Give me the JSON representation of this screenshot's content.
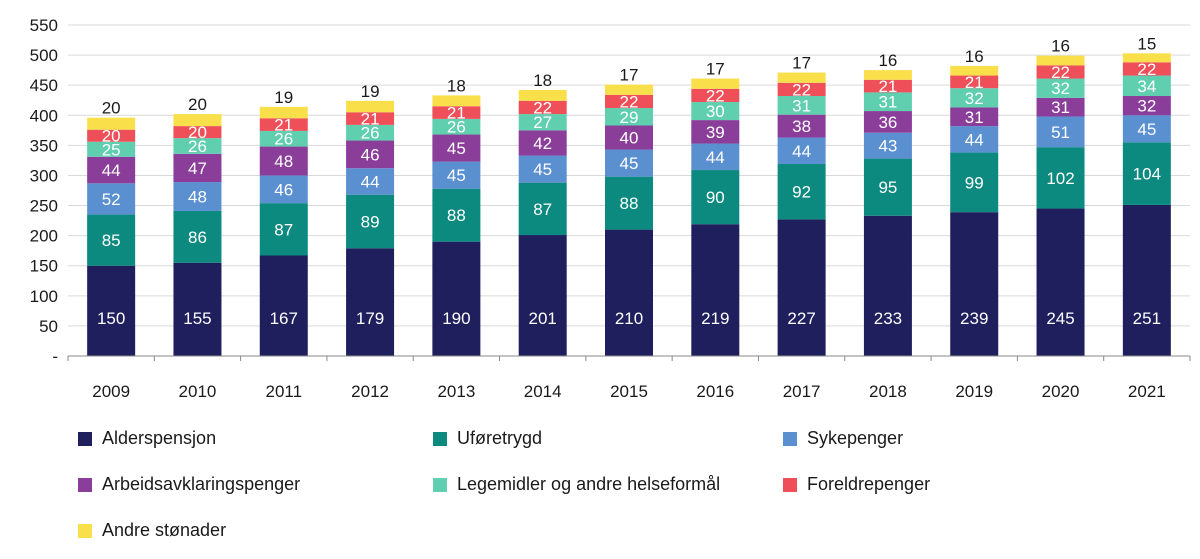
{
  "chart_data": {
    "type": "bar",
    "stacked": true,
    "categories": [
      "2009",
      "2010",
      "2011",
      "2012",
      "2013",
      "2014",
      "2015",
      "2016",
      "2017",
      "2018",
      "2019",
      "2020",
      "2021"
    ],
    "y_ticks": [
      "550",
      "500",
      "450",
      "400",
      "350",
      "300",
      "250",
      "200",
      "150",
      "100",
      "50",
      "-"
    ],
    "ylim": [
      0,
      550
    ],
    "series": [
      {
        "name": "Alderspensjon",
        "color": "#1f1f5e",
        "label_color": "#ffffff",
        "values": [
          150,
          155,
          167,
          179,
          190,
          201,
          210,
          219,
          227,
          233,
          239,
          245,
          251
        ]
      },
      {
        "name": "Uføretrygd",
        "color": "#0d8a7f",
        "label_color": "#ffffff",
        "values": [
          85,
          86,
          87,
          89,
          88,
          87,
          88,
          90,
          92,
          95,
          99,
          102,
          104
        ]
      },
      {
        "name": "Sykepenger",
        "color": "#5a8fd0",
        "label_color": "#ffffff",
        "values": [
          52,
          48,
          46,
          44,
          45,
          45,
          45,
          44,
          44,
          43,
          44,
          51,
          45
        ]
      },
      {
        "name": "Arbeidsavklaringspenger",
        "color": "#8b3d9a",
        "label_color": "#ffffff",
        "values": [
          44,
          47,
          48,
          46,
          45,
          42,
          40,
          39,
          38,
          36,
          31,
          31,
          32
        ]
      },
      {
        "name": "Legemidler og andre helseformål",
        "color": "#5fcfb0",
        "label_color": "#ffffff",
        "values": [
          25,
          26,
          26,
          26,
          26,
          27,
          29,
          30,
          31,
          31,
          32,
          32,
          34
        ]
      },
      {
        "name": "Foreldrepenger",
        "color": "#ef4f58",
        "label_color": "#ffffff",
        "values": [
          20,
          20,
          21,
          21,
          21,
          22,
          22,
          22,
          22,
          21,
          21,
          22,
          22
        ]
      },
      {
        "name": "Andre stønader",
        "color": "#f9e04a",
        "label_color": "#1a1a1a",
        "values": [
          20,
          20,
          19,
          19,
          18,
          18,
          17,
          17,
          17,
          16,
          16,
          16,
          15
        ]
      }
    ],
    "legend_position": "bottom"
  }
}
